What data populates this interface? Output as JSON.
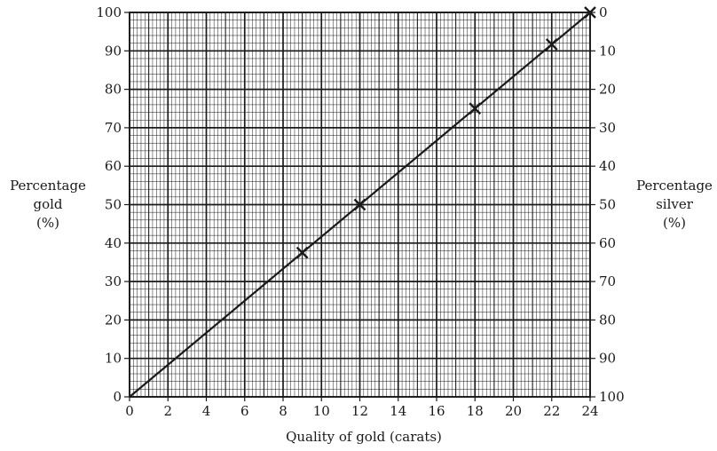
{
  "chart_data": {
    "type": "line",
    "xlabel": "Quality of gold (carats)",
    "ylabel_left": [
      "Percentage",
      "gold",
      "(%)"
    ],
    "ylabel_right": [
      "Percentage",
      "silver",
      "(%)"
    ],
    "xlim": [
      0,
      24
    ],
    "ylim": [
      0,
      100
    ],
    "x_ticks": [
      0,
      2,
      4,
      6,
      8,
      10,
      12,
      14,
      16,
      18,
      20,
      22,
      24
    ],
    "y_ticks_left": [
      0,
      10,
      20,
      30,
      40,
      50,
      60,
      70,
      80,
      90,
      100
    ],
    "y_ticks_right": [
      100,
      90,
      80,
      70,
      60,
      50,
      40,
      30,
      20,
      10,
      0
    ],
    "grid": "graph paper",
    "line": {
      "x": [
        0,
        24
      ],
      "y": [
        0,
        100
      ]
    },
    "points": {
      "marker": "cross",
      "x": [
        9,
        12,
        18,
        22,
        24
      ],
      "y": [
        37.5,
        50,
        75,
        91.7,
        100
      ]
    },
    "colors": {
      "ink": "#1a1a1a",
      "grid": "#1a1a1a"
    }
  }
}
